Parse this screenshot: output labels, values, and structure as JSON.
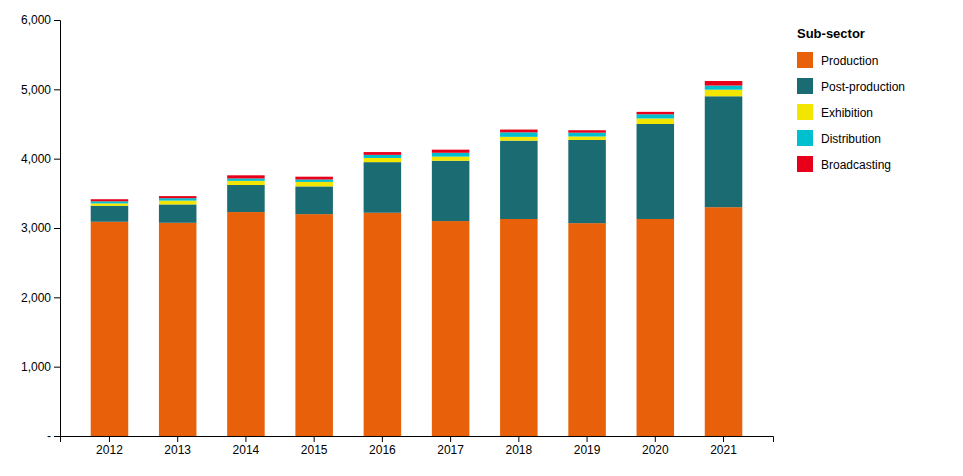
{
  "chart_data": {
    "type": "bar",
    "stacked": true,
    "categories": [
      "2012",
      "2013",
      "2014",
      "2015",
      "2016",
      "2017",
      "2018",
      "2019",
      "2020",
      "2021"
    ],
    "series": [
      {
        "name": "Production",
        "color": "#E8610A",
        "values": [
          3090,
          3075,
          3230,
          3200,
          3220,
          3100,
          3130,
          3070,
          3130,
          3300
        ]
      },
      {
        "name": "Post-production",
        "color": "#1B6B73",
        "values": [
          230,
          265,
          390,
          400,
          730,
          870,
          1130,
          1200,
          1370,
          1600
        ]
      },
      {
        "name": "Exhibition",
        "color": "#F2E600",
        "values": [
          35,
          55,
          60,
          65,
          60,
          60,
          55,
          50,
          80,
          95
        ]
      },
      {
        "name": "Distribution",
        "color": "#00BFCE",
        "values": [
          30,
          35,
          35,
          35,
          45,
          55,
          65,
          55,
          60,
          60
        ]
      },
      {
        "name": "Broadcasting",
        "color": "#E8001A",
        "values": [
          30,
          30,
          45,
          40,
          40,
          45,
          40,
          35,
          35,
          65
        ]
      }
    ],
    "ylim": [
      0,
      6000
    ],
    "yticks": [
      {
        "value": 0,
        "label": "-"
      },
      {
        "value": 1000,
        "label": "1,000"
      },
      {
        "value": 2000,
        "label": "2,000"
      },
      {
        "value": 3000,
        "label": "3,000"
      },
      {
        "value": 4000,
        "label": "4,000"
      },
      {
        "value": 5000,
        "label": "5,000"
      },
      {
        "value": 6000,
        "label": "6,000"
      }
    ],
    "grid": false,
    "legend": "right",
    "legend_title": "Sub-sector"
  }
}
